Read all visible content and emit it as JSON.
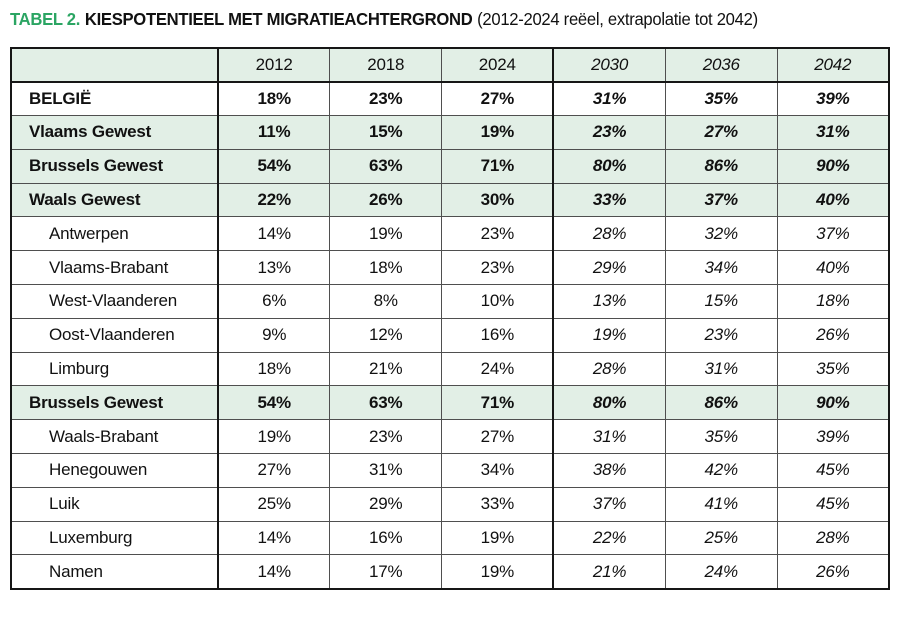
{
  "page": {
    "title_label": "TABEL 2.",
    "title_heading": "KIESPOTENTIEEL MET MIGRATIEACHTERGROND",
    "title_subtitle": "(2012-2024 reëel, extrapolatie tot 2042)"
  },
  "colors": {
    "accent_green": "#2ba563",
    "row_green_bg": "#e2efe6",
    "border_strong": "#161616",
    "border_thin": "#4f4f4f",
    "text": "#111111"
  },
  "chart_data": {
    "type": "table",
    "title": "TABEL 2. KIESPOTENTIEEL MET MIGRATIEACHTERGROND (2012-2024 reëel, extrapolatie tot 2042)",
    "columns": [
      "",
      "2012",
      "2018",
      "2024",
      "2030",
      "2036",
      "2042"
    ],
    "column_styles": [
      "label",
      "real",
      "real",
      "real",
      "extrapolated",
      "extrapolated",
      "extrapolated"
    ],
    "legend_note": "Columns 2030-2042 are extrapolated (italic); green rows are country/region aggregates",
    "rows": [
      {
        "label": "BELGIË",
        "emphasis": true,
        "highlight": false,
        "values": [
          "18%",
          "23%",
          "27%",
          "31%",
          "35%",
          "39%"
        ]
      },
      {
        "label": "Vlaams Gewest",
        "emphasis": true,
        "highlight": true,
        "values": [
          "11%",
          "15%",
          "19%",
          "23%",
          "27%",
          "31%"
        ]
      },
      {
        "label": "Brussels Gewest",
        "emphasis": true,
        "highlight": true,
        "values": [
          "54%",
          "63%",
          "71%",
          "80%",
          "86%",
          "90%"
        ]
      },
      {
        "label": "Waals Gewest",
        "emphasis": true,
        "highlight": true,
        "values": [
          "22%",
          "26%",
          "30%",
          "33%",
          "37%",
          "40%"
        ]
      },
      {
        "label": "Antwerpen",
        "emphasis": false,
        "highlight": false,
        "values": [
          "14%",
          "19%",
          "23%",
          "28%",
          "32%",
          "37%"
        ]
      },
      {
        "label": "Vlaams-Brabant",
        "emphasis": false,
        "highlight": false,
        "values": [
          "13%",
          "18%",
          "23%",
          "29%",
          "34%",
          "40%"
        ]
      },
      {
        "label": "West-Vlaanderen",
        "emphasis": false,
        "highlight": false,
        "values": [
          "6%",
          "8%",
          "10%",
          "13%",
          "15%",
          "18%"
        ]
      },
      {
        "label": "Oost-Vlaanderen",
        "emphasis": false,
        "highlight": false,
        "values": [
          "9%",
          "12%",
          "16%",
          "19%",
          "23%",
          "26%"
        ]
      },
      {
        "label": "Limburg",
        "emphasis": false,
        "highlight": false,
        "values": [
          "18%",
          "21%",
          "24%",
          "28%",
          "31%",
          "35%"
        ]
      },
      {
        "label": "Brussels Gewest",
        "emphasis": true,
        "highlight": true,
        "values": [
          "54%",
          "63%",
          "71%",
          "80%",
          "86%",
          "90%"
        ]
      },
      {
        "label": "Waals-Brabant",
        "emphasis": false,
        "highlight": false,
        "values": [
          "19%",
          "23%",
          "27%",
          "31%",
          "35%",
          "39%"
        ]
      },
      {
        "label": "Henegouwen",
        "emphasis": false,
        "highlight": false,
        "values": [
          "27%",
          "31%",
          "34%",
          "38%",
          "42%",
          "45%"
        ]
      },
      {
        "label": "Luik",
        "emphasis": false,
        "highlight": false,
        "values": [
          "25%",
          "29%",
          "33%",
          "37%",
          "41%",
          "45%"
        ]
      },
      {
        "label": "Luxemburg",
        "emphasis": false,
        "highlight": false,
        "values": [
          "14%",
          "16%",
          "19%",
          "22%",
          "25%",
          "28%"
        ]
      },
      {
        "label": "Namen",
        "emphasis": false,
        "highlight": false,
        "values": [
          "14%",
          "17%",
          "19%",
          "21%",
          "24%",
          "26%"
        ]
      }
    ]
  }
}
